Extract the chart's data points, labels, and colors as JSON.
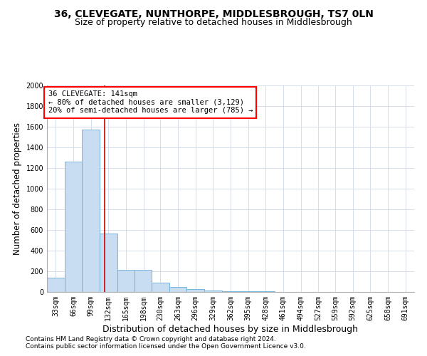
{
  "title1": "36, CLEVEGATE, NUNTHORPE, MIDDLESBROUGH, TS7 0LN",
  "title2": "Size of property relative to detached houses in Middlesbrough",
  "xlabel": "Distribution of detached houses by size in Middlesbrough",
  "ylabel": "Number of detached properties",
  "footer1": "Contains HM Land Registry data © Crown copyright and database right 2024.",
  "footer2": "Contains public sector information licensed under the Open Government Licence v3.0.",
  "annotation_title": "36 CLEVEGATE: 141sqm",
  "annotation_line1": "← 80% of detached houses are smaller (3,129)",
  "annotation_line2": "20% of semi-detached houses are larger (785) →",
  "bar_color": "#c8ddf2",
  "bar_edge_color": "#6aaed6",
  "grid_color": "#d0d8e8",
  "vline_color": "#cc0000",
  "vline_x": 141,
  "categories": [
    "33sqm",
    "66sqm",
    "99sqm",
    "132sqm",
    "165sqm",
    "198sqm",
    "230sqm",
    "263sqm",
    "296sqm",
    "329sqm",
    "362sqm",
    "395sqm",
    "428sqm",
    "461sqm",
    "494sqm",
    "527sqm",
    "559sqm",
    "592sqm",
    "625sqm",
    "658sqm",
    "691sqm"
  ],
  "bin_edges": [
    33,
    66,
    99,
    132,
    165,
    198,
    230,
    263,
    296,
    329,
    362,
    395,
    428,
    461,
    494,
    527,
    559,
    592,
    625,
    658,
    691,
    724
  ],
  "values": [
    140,
    1265,
    1575,
    565,
    215,
    215,
    90,
    50,
    25,
    15,
    10,
    8,
    5,
    3,
    2,
    1,
    1,
    0,
    0,
    0,
    0
  ],
  "ylim": [
    0,
    2000
  ],
  "yticks": [
    0,
    200,
    400,
    600,
    800,
    1000,
    1200,
    1400,
    1600,
    1800,
    2000
  ],
  "background_color": "#ffffff",
  "title1_fontsize": 10,
  "title2_fontsize": 9,
  "xlabel_fontsize": 9,
  "ylabel_fontsize": 8.5,
  "tick_fontsize": 7,
  "footer_fontsize": 6.5,
  "annotation_fontsize": 7.5
}
